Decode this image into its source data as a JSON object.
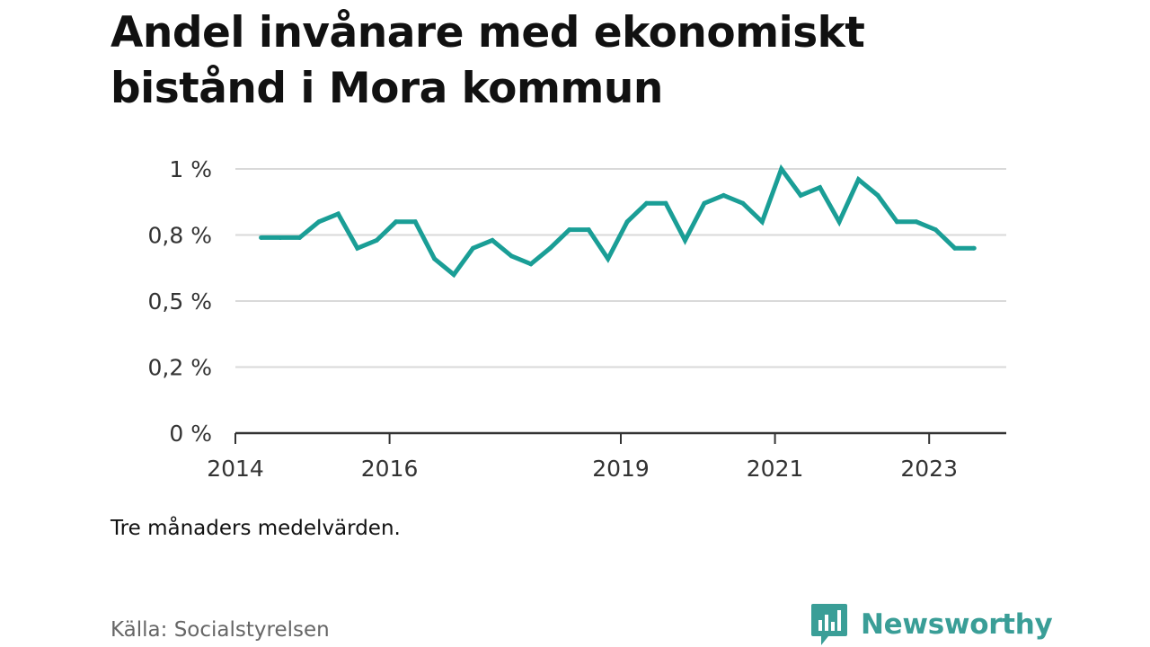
{
  "title": "Andel invånare med ekonomiskt bistånd i Mora kommun",
  "note": "Tre månaders medelvärden.",
  "source": "Källa: Socialstyrelsen",
  "brand": {
    "name": "Newsworthy",
    "icon": "newsworthy-logo-icon",
    "color": "#3a9e97"
  },
  "colors": {
    "line": "#1a9e96",
    "grid": "#d9d9d9",
    "axis": "#333333"
  },
  "chart_data": {
    "type": "line",
    "title": "Andel invånare med ekonomiskt bistånd i Mora kommun",
    "xlabel": "",
    "ylabel": "",
    "x_ticks": [
      "2014",
      "2016",
      "2019",
      "2021",
      "2023"
    ],
    "y_ticks": [
      {
        "value": 0,
        "label": "0 %"
      },
      {
        "value": 0.25,
        "label": "0,2 %"
      },
      {
        "value": 0.5,
        "label": "0,5 %"
      },
      {
        "value": 0.75,
        "label": "0,8 %"
      },
      {
        "value": 1.0,
        "label": "1 %"
      }
    ],
    "ylim": [
      0,
      1.0
    ],
    "xlim": [
      "2014-01",
      "2024-01"
    ],
    "grid": true,
    "series": [
      {
        "x": [
          "2014-05",
          "2014-08",
          "2014-11",
          "2015-02",
          "2015-05",
          "2015-08",
          "2015-11",
          "2016-02",
          "2016-05",
          "2016-08",
          "2016-11",
          "2017-02",
          "2017-05",
          "2017-08",
          "2017-11",
          "2018-02",
          "2018-05",
          "2018-08",
          "2018-11",
          "2019-02",
          "2019-05",
          "2019-08",
          "2019-11",
          "2020-02",
          "2020-05",
          "2020-08",
          "2020-11",
          "2021-02",
          "2021-05",
          "2021-08",
          "2021-11",
          "2022-02",
          "2022-05",
          "2022-08",
          "2022-11",
          "2023-02",
          "2023-05",
          "2023-08"
        ],
        "values": [
          0.74,
          0.74,
          0.74,
          0.8,
          0.83,
          0.7,
          0.73,
          0.8,
          0.8,
          0.66,
          0.6,
          0.7,
          0.73,
          0.67,
          0.64,
          0.7,
          0.77,
          0.77,
          0.66,
          0.8,
          0.87,
          0.87,
          0.73,
          0.87,
          0.9,
          0.87,
          0.8,
          1.0,
          0.9,
          0.93,
          0.8,
          0.96,
          0.9,
          0.8,
          0.8,
          0.77,
          0.7,
          0.7
        ]
      }
    ]
  }
}
